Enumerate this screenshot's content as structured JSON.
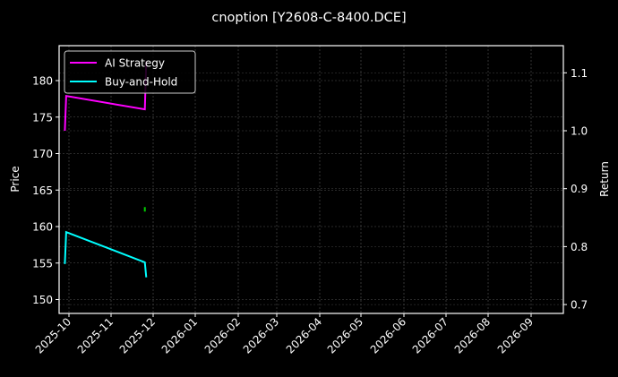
{
  "chart_data": {
    "type": "line",
    "title": "cnoption [Y2608-C-8400.DCE]",
    "xlabel": "",
    "ylabel": "Price",
    "ylabel_right": "Return",
    "grid": true,
    "legend_position": "upper left",
    "x_ticks": [
      "2025-10",
      "2025-11",
      "2025-12",
      "2026-01",
      "2026-02",
      "2026-03",
      "2026-04",
      "2026-05",
      "2026-06",
      "2026-07",
      "2026-08",
      "2026-09"
    ],
    "y_ticks_left": [
      "150",
      "155",
      "160",
      "165",
      "170",
      "175",
      "180"
    ],
    "y_ticks_right": [
      "0.7",
      "0.8",
      "0.9",
      "1.0",
      "1.1"
    ],
    "ylim_left": [
      148.2,
      184.5
    ],
    "ylim_right": [
      0.68,
      1.14
    ],
    "series": [
      {
        "name": "AI Strategy",
        "axis": "right",
        "color": "#ff00ff",
        "x": [
          "2025-09-28",
          "2025-09-29",
          "2025-11-25",
          "2025-11-26"
        ],
        "values": [
          1.0,
          1.06,
          1.037,
          1.12
        ]
      },
      {
        "name": "Buy-and-Hold",
        "axis": "right",
        "color": "#00ffff",
        "x": [
          "2025-09-28",
          "2025-09-29",
          "2025-11-25",
          "2025-11-26"
        ],
        "values": [
          0.77,
          0.825,
          0.773,
          0.747
        ]
      },
      {
        "name": "Price marker",
        "axis": "left",
        "color": "#00cc00",
        "x": [
          "2025-11-25"
        ],
        "values": [
          162.3
        ]
      }
    ]
  },
  "legend": {
    "items": [
      {
        "label": "AI Strategy",
        "color": "#ff00ff"
      },
      {
        "label": "Buy-and-Hold",
        "color": "#00ffff"
      }
    ]
  }
}
